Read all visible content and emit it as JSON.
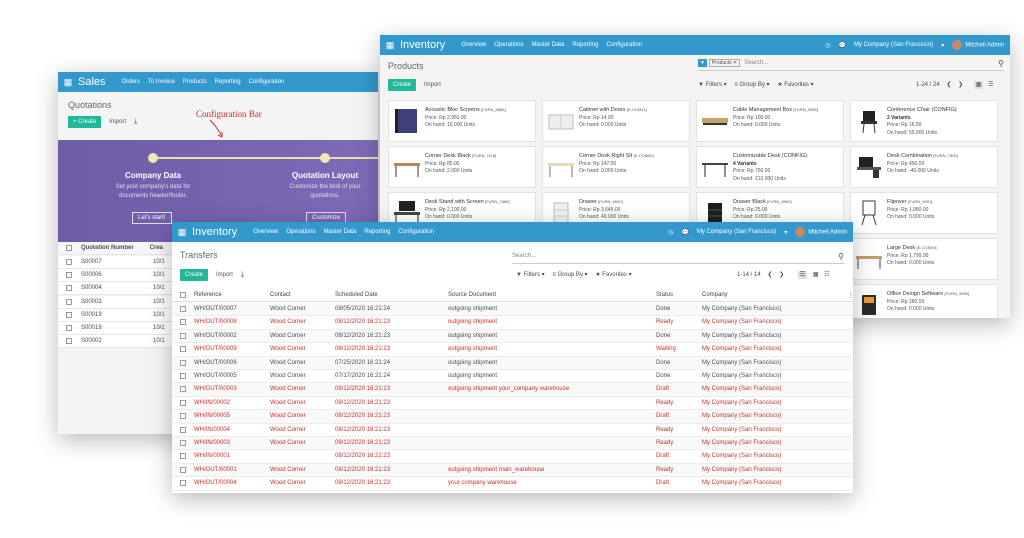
{
  "annotation": "Configuration Bar",
  "sales": {
    "app_title": "Sales",
    "menu": [
      "Orders",
      "To Invoice",
      "Products",
      "Reporting",
      "Configuration"
    ],
    "page_title": "Quotations",
    "create_label": "+ Create",
    "import_label": "Import",
    "step1_title": "Company Data",
    "step1_text1": "Set your company's data for",
    "step1_text2": "documents header/footer.",
    "step1_button": "Let's start!",
    "step2_title": "Quotation Layout",
    "step2_text1": "Customize the look of your",
    "step2_text2": "quotations.",
    "step2_button": "Customize",
    "col_number": "Quotation Number",
    "col_creation": "Crea",
    "rows": [
      {
        "number": "S00007",
        "date": "10/1"
      },
      {
        "number": "S00006",
        "date": "10/1"
      },
      {
        "number": "S00004",
        "date": "10/1"
      },
      {
        "number": "S00003",
        "date": "10/1"
      },
      {
        "number": "S00019",
        "date": "10/1"
      },
      {
        "number": "S00018",
        "date": "10/1"
      },
      {
        "number": "S00002",
        "date": "10/1"
      }
    ]
  },
  "inventory": {
    "app_title": "Inventory",
    "menu": [
      "Overview",
      "Operations",
      "Master Data",
      "Reporting",
      "Configuration"
    ],
    "company": "My Company (San Francisco)",
    "user": "Mitchell Admin",
    "page_title": "Products",
    "facet": "Products",
    "search_placeholder": "Search...",
    "create_label": "Create",
    "import_label": "Import",
    "filters": "Filters",
    "group_by": "Group By",
    "favorites": "Favorites",
    "pager": "1-24 / 24",
    "products": [
      {
        "name": "Acoustic Bloc Screens",
        "code": "[FURN_6666]",
        "line2": "Price: Rp 2,950.00",
        "line3": "On hand: 16.000 Units",
        "img": "screen"
      },
      {
        "name": "Cabinet with Doors",
        "code": "[E-COM11]",
        "line2": "Price: Rp 14.00",
        "line3": "On hand: 0.000 Units",
        "img": "cabinet"
      },
      {
        "name": "Cable Management Box",
        "code": "[FURN_5555]",
        "line2": "Price: Rp 100.00",
        "line3": "On hand: 0.000 Units",
        "img": "box"
      },
      {
        "name": "Conference Chair (CONFIG)",
        "code": "",
        "line2": "2 Variants",
        "line3": "Price: Rp 16.50",
        "line4": "On hand: 55.000 Units",
        "img": "chair"
      },
      {
        "name": "Corner Desk Black",
        "code": "[FURN_1118]",
        "line2": "Price: Rp 85.00",
        "line3": "On hand: 2.000 Units",
        "img": "desk"
      },
      {
        "name": "Corner Desk Right Sit",
        "code": "[E-COM06]",
        "line2": "Price: Rp 147.00",
        "line3": "On hand: 0.000 Units",
        "img": "desk2"
      },
      {
        "name": "Customizable Desk (CONFIG)",
        "code": "",
        "line2": "4 Variants",
        "line3": "Price: Rp 750.00",
        "line4": "On hand: 210.000 Units",
        "img": "desk3"
      },
      {
        "name": "Desk Combination",
        "code": "[FURN_7800]",
        "line2": "Price: Rp 450.00",
        "line3": "On hand: -40.000 Units",
        "img": "combo"
      },
      {
        "name": "Desk Stand with Screen",
        "code": "[FURN_7888]",
        "line2": "Price: Rp 2,100.00",
        "line3": "On hand: 0.000 Units",
        "img": "stand"
      },
      {
        "name": "Drawer",
        "code": "[FURN_8900]",
        "line2": "Price: Rp 3,645.00",
        "line3": "On hand: 40.000 Units",
        "img": "drawer"
      },
      {
        "name": "Drawer Black",
        "code": "[FURN_8900]",
        "line2": "Price: Rp 25.00",
        "line3": "On hand: 0.000 Units",
        "img": "drawerblack"
      },
      {
        "name": "Flipover",
        "code": "[FURN_9001]",
        "line2": "Price: Rp 1,950.00",
        "line3": "On hand: 0.000 Units",
        "img": "flip"
      },
      {
        "name": "Large Desk",
        "code": "[E-COM09]",
        "line2": "Price: Rp 1,799.00",
        "line3": "On hand: 0.000 Units",
        "img": "large"
      },
      {
        "name": "Office Design Software",
        "code": "[FURN_9999]",
        "line2": "Price: Rp 280.00",
        "line3": "On hand: 0.000 Units",
        "img": "software"
      }
    ]
  },
  "transfers": {
    "app_title": "Inventory",
    "menu": [
      "Overview",
      "Operations",
      "Master Data",
      "Reporting",
      "Configuration"
    ],
    "company": "My Company (San Francisco)",
    "user": "Mitchell Admin",
    "page_title": "Transfers",
    "search_placeholder": "Search...",
    "create_label": "Create",
    "import_label": "Import",
    "filters": "Filters",
    "group_by": "Group By",
    "favorites": "Favorites",
    "pager": "1-14 / 14",
    "columns": [
      "Reference",
      "Contact",
      "Scheduled Date",
      "Source Document",
      "Status",
      "Company"
    ],
    "rows": [
      {
        "ref": "WH/OUT/00007",
        "contact": "Wood Corner",
        "date": "08/05/2020 16:21:24",
        "source": "outgoing shipment",
        "status": "Done",
        "company": "My Company (San Francisco)",
        "late": false
      },
      {
        "ref": "WH/OUT/00008",
        "contact": "Wood Corner",
        "date": "08/12/2020 16:21:23",
        "source": "outgoing shipment",
        "status": "Ready",
        "company": "My Company (San Francisco)",
        "late": true
      },
      {
        "ref": "WH/OUT/00002",
        "contact": "Wood Corner",
        "date": "08/12/2020 16:21:23",
        "source": "outgoing shipment",
        "status": "Done",
        "company": "My Company (San Francisco)",
        "late": false
      },
      {
        "ref": "WH/OUT/00009",
        "contact": "Wood Corner",
        "date": "08/12/2020 16:21:23",
        "source": "outgoing shipment",
        "status": "Waiting",
        "company": "My Company (San Francisco)",
        "late": true
      },
      {
        "ref": "WH/OUT/00006",
        "contact": "Wood Corner",
        "date": "07/25/2020 16:21:24",
        "source": "outgoing shipment",
        "status": "Done",
        "company": "My Company (San Francisco)",
        "late": false
      },
      {
        "ref": "WH/OUT/00005",
        "contact": "Wood Corner",
        "date": "07/17/2020 16:21:24",
        "source": "outgoing shipment",
        "status": "Done",
        "company": "My Company (San Francisco)",
        "late": false
      },
      {
        "ref": "WH/OUT/00003",
        "contact": "Wood Corner",
        "date": "08/12/2020 16:21:23",
        "source": "outgoing shipment your_company warehouse",
        "status": "Draft",
        "company": "My Company (San Francisco)",
        "late": true
      },
      {
        "ref": "WH/IN/00002",
        "contact": "Wood Corner",
        "date": "08/12/2020 16:21:23",
        "source": "",
        "status": "Ready",
        "company": "My Company (San Francisco)",
        "late": true
      },
      {
        "ref": "WH/IN/00005",
        "contact": "Wood Corner",
        "date": "08/12/2020 16:21:23",
        "source": "",
        "status": "Draft",
        "company": "My Company (San Francisco)",
        "late": true
      },
      {
        "ref": "WH/IN/00004",
        "contact": "Wood Corner",
        "date": "08/12/2020 16:21:23",
        "source": "",
        "status": "Ready",
        "company": "My Company (San Francisco)",
        "late": true
      },
      {
        "ref": "WH/IN/00003",
        "contact": "Wood Corner",
        "date": "08/12/2020 16:21:23",
        "source": "",
        "status": "Ready",
        "company": "My Company (San Francisco)",
        "late": true
      },
      {
        "ref": "WH/IN/00001",
        "contact": "",
        "date": "08/12/2020 16:21:23",
        "source": "",
        "status": "Draft",
        "company": "My Company (San Francisco)",
        "late": true
      },
      {
        "ref": "WH/OUT/00001",
        "contact": "Wood Corner",
        "date": "08/12/2020 16:21:23",
        "source": "outgoing shipment main_warehouse",
        "status": "Ready",
        "company": "My Company (San Francisco)",
        "late": true
      },
      {
        "ref": "WH/OUT/00004",
        "contact": "Wood Corner",
        "date": "08/12/2020 16:21:23",
        "source": "your company warehouse",
        "status": "Draft",
        "company": "My Company (San Francisco)",
        "late": true
      }
    ]
  }
}
